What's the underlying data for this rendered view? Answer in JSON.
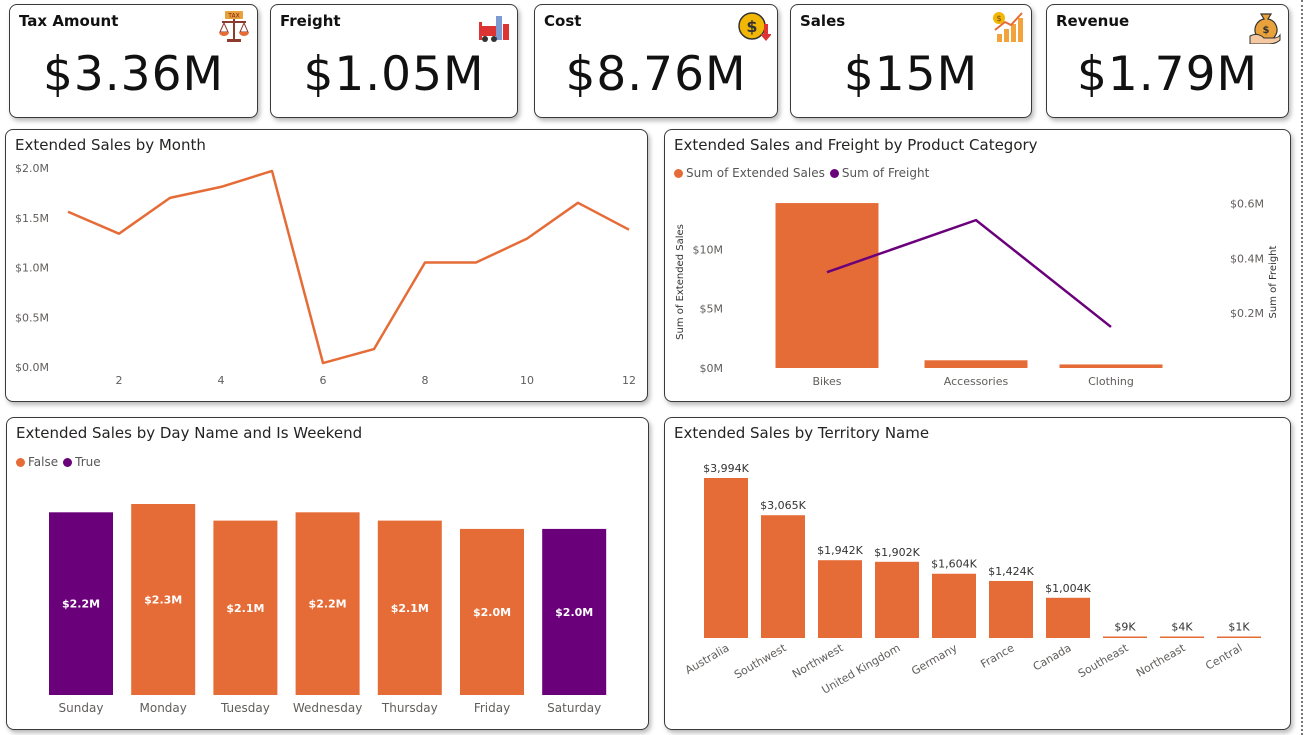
{
  "kpis": [
    {
      "title": "Tax Amount",
      "value": "$3.36M",
      "icon": "scales-icon"
    },
    {
      "title": "Freight",
      "value": "$1.05M",
      "icon": "forklift-icon"
    },
    {
      "title": "Cost",
      "value": "$8.76M",
      "icon": "dollar-coin-down-icon"
    },
    {
      "title": "Sales",
      "value": "$15M",
      "icon": "growth-chart-icon"
    },
    {
      "title": "Revenue",
      "value": "$1.79M",
      "icon": "money-bag-hand-icon"
    }
  ],
  "colors": {
    "orange": "#E66C37",
    "purple": "#6B007B",
    "axis_text": "#605E5C",
    "grid": "#E6E6E6"
  },
  "chart_data": [
    {
      "id": "sales_by_month",
      "type": "line",
      "title": "Extended Sales by Month",
      "x": [
        1,
        2,
        3,
        4,
        5,
        6,
        7,
        8,
        9,
        10,
        11,
        12
      ],
      "series": [
        {
          "values": [
            1.56,
            1.34,
            1.7,
            1.81,
            1.97,
            0.04,
            0.18,
            1.05,
            1.05,
            1.29,
            1.65,
            1.38
          ]
        }
      ],
      "x_tick_labels": [
        "2",
        "4",
        "6",
        "8",
        "10",
        "12"
      ],
      "y_tick_labels": [
        "$2.0M",
        "$1.5M",
        "$1.0M",
        "$0.5M",
        "$0.0M"
      ],
      "ylim": [
        0,
        2.0
      ],
      "y_unit": "$M"
    },
    {
      "id": "sales_freight_by_category",
      "type": "bar",
      "title": "Extended Sales and Freight by Product Category",
      "categories": [
        "Bikes",
        "Accessories",
        "Clothing"
      ],
      "series": [
        {
          "name": "Sum of Extended Sales",
          "type": "bar",
          "values": [
            13.9,
            0.65,
            0.3
          ],
          "axis": "left"
        },
        {
          "name": "Sum of Freight",
          "type": "line",
          "values": [
            0.35,
            0.54,
            0.15
          ],
          "axis": "right"
        }
      ],
      "ylabel": "Sum of Extended Sales",
      "y2label": "Sum of Freight",
      "y_tick_labels": [
        "$10M",
        "$5M",
        "$0M"
      ],
      "y2_tick_labels": [
        "$0.6M",
        "$0.4M",
        "$0.2M"
      ],
      "ylim": [
        0,
        15
      ],
      "y2lim": [
        0,
        0.65
      ],
      "legend": "top-left"
    },
    {
      "id": "sales_by_day",
      "type": "bar",
      "title": "Extended Sales by Day Name and Is Weekend",
      "categories": [
        "Sunday",
        "Monday",
        "Tuesday",
        "Wednesday",
        "Thursday",
        "Friday",
        "Saturday"
      ],
      "values": [
        2.2,
        2.3,
        2.1,
        2.2,
        2.1,
        2.0,
        2.0
      ],
      "labels": [
        "$2.2M",
        "$2.3M",
        "$2.1M",
        "$2.2M",
        "$2.1M",
        "$2.0M",
        "$2.0M"
      ],
      "is_weekend": [
        true,
        false,
        false,
        false,
        false,
        false,
        true
      ],
      "legend_entries": [
        "False",
        "True"
      ],
      "legend": "top-left",
      "ylim": [
        0,
        2.3
      ]
    },
    {
      "id": "sales_by_territory",
      "type": "bar",
      "title": "Extended Sales by Territory Name",
      "categories": [
        "Australia",
        "Southwest",
        "Northwest",
        "United Kingdom",
        "Germany",
        "France",
        "Canada",
        "Southeast",
        "Northeast",
        "Central"
      ],
      "values": [
        3994,
        3065,
        1942,
        1902,
        1604,
        1424,
        1004,
        9,
        4,
        1
      ],
      "labels": [
        "$3,994K",
        "$3,065K",
        "$1,942K",
        "$1,902K",
        "$1,604K",
        "$1,424K",
        "$1,004K",
        "$9K",
        "$4K",
        "$1K"
      ],
      "ylim": [
        0,
        3994
      ]
    }
  ]
}
